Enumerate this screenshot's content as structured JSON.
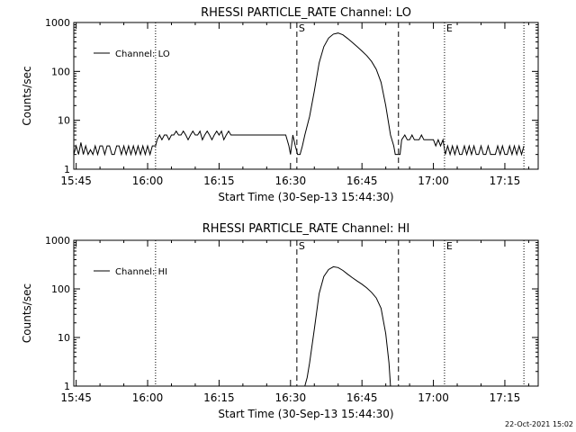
{
  "footer": {
    "timestamp": "22-Oct-2021 15:02"
  },
  "chart_data": [
    {
      "type": "line",
      "title": "RHESSI PARTICLE_RATE Channel: LO",
      "xlabel": "Start Time (30-Sep-13 15:44:30)",
      "ylabel": "Counts/sec",
      "y_scale": "log",
      "ylim": [
        1,
        1000
      ],
      "y_ticks": [
        {
          "value": 1,
          "label": "1"
        },
        {
          "value": 10,
          "label": "10"
        },
        {
          "value": 100,
          "label": "100"
        },
        {
          "value": 1000,
          "label": "1000"
        }
      ],
      "xlim": [
        "15:44:30",
        "17:22:00"
      ],
      "x_ticks": [
        "15:45",
        "16:00",
        "16:15",
        "16:30",
        "16:45",
        "17:00",
        "17:15"
      ],
      "legend": {
        "placement": "top-left",
        "entries": [
          "Channel: LO"
        ]
      },
      "markers": [
        {
          "time": "16:01:40",
          "style": "dotted",
          "label": ""
        },
        {
          "time": "16:31:20",
          "style": "dashed",
          "label": "S"
        },
        {
          "time": "16:52:40",
          "style": "dashed",
          "label": ""
        },
        {
          "time": "17:02:20",
          "style": "dotted",
          "label": "E"
        },
        {
          "time": "17:19:00",
          "style": "dotted",
          "label": ""
        }
      ],
      "series": [
        {
          "name": "Channel: LO",
          "color": "#000000",
          "points": [
            [
              "15:44:30",
              2
            ],
            [
              "15:45:00",
              3
            ],
            [
              "15:45:30",
              2
            ],
            [
              "15:46:00",
              3.5
            ],
            [
              "15:46:30",
              2
            ],
            [
              "15:47:00",
              3
            ],
            [
              "15:47:30",
              2
            ],
            [
              "15:48:00",
              2.5
            ],
            [
              "15:48:30",
              2
            ],
            [
              "15:49:00",
              3
            ],
            [
              "15:49:30",
              2
            ],
            [
              "15:50:00",
              3
            ],
            [
              "15:50:30",
              3
            ],
            [
              "15:51:00",
              2
            ],
            [
              "15:51:30",
              3
            ],
            [
              "15:52:00",
              3
            ],
            [
              "15:52:30",
              2
            ],
            [
              "15:53:00",
              2
            ],
            [
              "15:53:30",
              3
            ],
            [
              "15:54:00",
              3
            ],
            [
              "15:54:30",
              2
            ],
            [
              "15:55:00",
              3
            ],
            [
              "15:55:30",
              2
            ],
            [
              "15:56:00",
              3
            ],
            [
              "15:56:30",
              2
            ],
            [
              "15:57:00",
              3
            ],
            [
              "15:57:30",
              2
            ],
            [
              "15:58:00",
              3
            ],
            [
              "15:58:30",
              2
            ],
            [
              "15:59:00",
              3
            ],
            [
              "15:59:30",
              2
            ],
            [
              "16:00:00",
              3
            ],
            [
              "16:00:30",
              2
            ],
            [
              "16:01:00",
              3
            ],
            [
              "16:01:40",
              3
            ],
            [
              "16:02:00",
              4
            ],
            [
              "16:02:30",
              5
            ],
            [
              "16:03:00",
              4
            ],
            [
              "16:03:30",
              5
            ],
            [
              "16:04:00",
              5
            ],
            [
              "16:04:30",
              4
            ],
            [
              "16:05:00",
              5
            ],
            [
              "16:05:30",
              5
            ],
            [
              "16:06:00",
              6
            ],
            [
              "16:06:30",
              5
            ],
            [
              "16:07:00",
              5
            ],
            [
              "16:07:30",
              6
            ],
            [
              "16:08:00",
              5
            ],
            [
              "16:08:30",
              4
            ],
            [
              "16:09:00",
              5
            ],
            [
              "16:09:30",
              6
            ],
            [
              "16:10:00",
              5
            ],
            [
              "16:10:30",
              5
            ],
            [
              "16:11:00",
              6
            ],
            [
              "16:11:30",
              4
            ],
            [
              "16:12:00",
              5
            ],
            [
              "16:12:30",
              6
            ],
            [
              "16:13:00",
              5
            ],
            [
              "16:13:30",
              4
            ],
            [
              "16:14:00",
              5
            ],
            [
              "16:14:30",
              6
            ],
            [
              "16:15:00",
              5
            ],
            [
              "16:15:30",
              6
            ],
            [
              "16:16:00",
              4
            ],
            [
              "16:16:30",
              5
            ],
            [
              "16:17:00",
              6
            ],
            [
              "16:17:30",
              5
            ],
            [
              "16:18:00",
              5
            ],
            [
              "16:18:30",
              5
            ],
            [
              "16:19:00",
              5
            ],
            [
              "16:20:00",
              5
            ],
            [
              "16:21:00",
              5
            ],
            [
              "16:22:00",
              5
            ],
            [
              "16:23:00",
              5
            ],
            [
              "16:24:00",
              5
            ],
            [
              "16:25:00",
              5
            ],
            [
              "16:26:00",
              5
            ],
            [
              "16:27:00",
              5
            ],
            [
              "16:28:00",
              5
            ],
            [
              "16:29:00",
              5
            ],
            [
              "16:29:40",
              3
            ],
            [
              "16:30:00",
              2
            ],
            [
              "16:30:30",
              5
            ],
            [
              "16:31:00",
              3
            ],
            [
              "16:31:30",
              2
            ],
            [
              "16:32:00",
              2
            ],
            [
              "16:32:30",
              3
            ],
            [
              "16:33:00",
              5
            ],
            [
              "16:34:00",
              12
            ],
            [
              "16:35:00",
              40
            ],
            [
              "16:36:00",
              150
            ],
            [
              "16:37:00",
              320
            ],
            [
              "16:38:00",
              480
            ],
            [
              "16:39:00",
              580
            ],
            [
              "16:40:00",
              610
            ],
            [
              "16:41:00",
              560
            ],
            [
              "16:42:00",
              470
            ],
            [
              "16:43:00",
              390
            ],
            [
              "16:44:00",
              320
            ],
            [
              "16:45:00",
              260
            ],
            [
              "16:46:00",
              210
            ],
            [
              "16:47:00",
              160
            ],
            [
              "16:48:00",
              110
            ],
            [
              "16:49:00",
              60
            ],
            [
              "16:50:00",
              20
            ],
            [
              "16:51:00",
              5
            ],
            [
              "16:51:40",
              3
            ],
            [
              "16:52:00",
              2
            ],
            [
              "16:53:00",
              2
            ],
            [
              "16:53:20",
              4
            ],
            [
              "16:54:00",
              5
            ],
            [
              "16:54:30",
              4
            ],
            [
              "16:55:00",
              4
            ],
            [
              "16:55:30",
              5
            ],
            [
              "16:56:00",
              4
            ],
            [
              "16:56:30",
              4
            ],
            [
              "16:57:00",
              4
            ],
            [
              "16:57:30",
              5
            ],
            [
              "16:58:00",
              4
            ],
            [
              "16:58:30",
              4
            ],
            [
              "16:59:00",
              4
            ],
            [
              "16:59:30",
              4
            ],
            [
              "17:00:00",
              4
            ],
            [
              "17:00:30",
              3
            ],
            [
              "17:01:00",
              4
            ],
            [
              "17:01:30",
              3
            ],
            [
              "17:02:00",
              4
            ],
            [
              "17:02:30",
              2
            ],
            [
              "17:03:00",
              3
            ],
            [
              "17:03:30",
              2
            ],
            [
              "17:04:00",
              3
            ],
            [
              "17:04:30",
              2
            ],
            [
              "17:05:00",
              3
            ],
            [
              "17:05:30",
              2
            ],
            [
              "17:06:00",
              2
            ],
            [
              "17:06:30",
              3
            ],
            [
              "17:07:00",
              2
            ],
            [
              "17:07:30",
              3
            ],
            [
              "17:08:00",
              2
            ],
            [
              "17:08:30",
              3
            ],
            [
              "17:09:00",
              2
            ],
            [
              "17:09:30",
              2
            ],
            [
              "17:10:00",
              3
            ],
            [
              "17:10:30",
              2
            ],
            [
              "17:11:00",
              2
            ],
            [
              "17:11:30",
              3
            ],
            [
              "17:12:00",
              2
            ],
            [
              "17:12:30",
              2
            ],
            [
              "17:13:00",
              2
            ],
            [
              "17:13:30",
              3
            ],
            [
              "17:14:00",
              2
            ],
            [
              "17:14:30",
              3
            ],
            [
              "17:15:00",
              2
            ],
            [
              "17:15:30",
              2
            ],
            [
              "17:16:00",
              3
            ],
            [
              "17:16:30",
              2
            ],
            [
              "17:17:00",
              3
            ],
            [
              "17:17:30",
              2
            ],
            [
              "17:18:00",
              3
            ],
            [
              "17:18:30",
              2
            ],
            [
              "17:19:00",
              3
            ]
          ]
        }
      ]
    },
    {
      "type": "line",
      "title": "RHESSI PARTICLE_RATE Channel: HI",
      "xlabel": "Start Time (30-Sep-13 15:44:30)",
      "ylabel": "Counts/sec",
      "y_scale": "log",
      "ylim": [
        1,
        1000
      ],
      "y_ticks": [
        {
          "value": 1,
          "label": "1"
        },
        {
          "value": 10,
          "label": "10"
        },
        {
          "value": 100,
          "label": "100"
        },
        {
          "value": 1000,
          "label": "1000"
        }
      ],
      "xlim": [
        "15:44:30",
        "17:22:00"
      ],
      "x_ticks": [
        "15:45",
        "16:00",
        "16:15",
        "16:30",
        "16:45",
        "17:00",
        "17:15"
      ],
      "legend": {
        "placement": "top-left",
        "entries": [
          "Channel: HI"
        ]
      },
      "markers": [
        {
          "time": "16:01:40",
          "style": "dotted",
          "label": ""
        },
        {
          "time": "16:31:20",
          "style": "dashed",
          "label": "S"
        },
        {
          "time": "16:52:40",
          "style": "dashed",
          "label": ""
        },
        {
          "time": "17:02:20",
          "style": "dotted",
          "label": "E"
        },
        {
          "time": "17:19:00",
          "style": "dotted",
          "label": ""
        }
      ],
      "series": [
        {
          "name": "Channel: HI",
          "color": "#000000",
          "points": [
            [
              "16:33:00",
              1
            ],
            [
              "16:33:30",
              1.5
            ],
            [
              "16:34:00",
              3
            ],
            [
              "16:35:00",
              15
            ],
            [
              "16:36:00",
              80
            ],
            [
              "16:37:00",
              180
            ],
            [
              "16:38:00",
              250
            ],
            [
              "16:39:00",
              285
            ],
            [
              "16:40:00",
              275
            ],
            [
              "16:41:00",
              240
            ],
            [
              "16:42:00",
              200
            ],
            [
              "16:43:00",
              170
            ],
            [
              "16:44:00",
              145
            ],
            [
              "16:45:00",
              125
            ],
            [
              "16:46:00",
              105
            ],
            [
              "16:47:00",
              85
            ],
            [
              "16:48:00",
              65
            ],
            [
              "16:49:00",
              40
            ],
            [
              "16:50:00",
              12
            ],
            [
              "16:50:40",
              3
            ],
            [
              "16:51:00",
              1
            ]
          ]
        }
      ]
    }
  ]
}
